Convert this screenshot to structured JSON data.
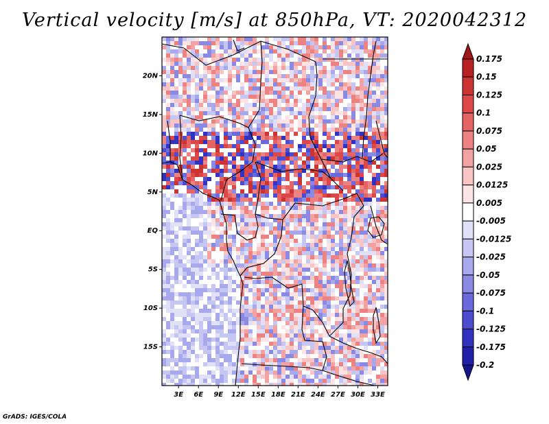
{
  "title": "Vertical velocity [m/s] at 850hPa, VT: 2020042312",
  "footer": "GrADS: IGES/COLA",
  "map": {
    "lat_ticks": [
      {
        "label": "20N",
        "value": 20
      },
      {
        "label": "15N",
        "value": 15
      },
      {
        "label": "10N",
        "value": 10
      },
      {
        "label": "5N",
        "value": 5
      },
      {
        "label": "EQ",
        "value": 0
      },
      {
        "label": "5S",
        "value": -5
      },
      {
        "label": "10S",
        "value": -10
      },
      {
        "label": "15S",
        "value": -15
      }
    ],
    "lon_ticks": [
      {
        "label": "3E",
        "value": 3
      },
      {
        "label": "6E",
        "value": 6
      },
      {
        "label": "9E",
        "value": 9
      },
      {
        "label": "12E",
        "value": 12
      },
      {
        "label": "15E",
        "value": 15
      },
      {
        "label": "18E",
        "value": 18
      },
      {
        "label": "21E",
        "value": 21
      },
      {
        "label": "24E",
        "value": 24
      },
      {
        "label": "27E",
        "value": 27
      },
      {
        "label": "30E",
        "value": 30
      },
      {
        "label": "33E",
        "value": 33
      }
    ],
    "lat_range": [
      -20,
      25
    ],
    "lon_range": [
      0.5,
      34.5
    ]
  },
  "colorbar": {
    "labels": [
      "0.175",
      "0.15",
      "0.125",
      "0.1",
      "0.075",
      "0.05",
      "0.025",
      "0.0125",
      "0.005",
      "-0.005",
      "-0.0125",
      "-0.025",
      "-0.05",
      "-0.075",
      "-0.1",
      "-0.125",
      "-0.175",
      "-0.2"
    ],
    "colors": [
      "#a01818",
      "#b82222",
      "#cc3333",
      "#dc4848",
      "#e46464",
      "#ec8282",
      "#f2a2a2",
      "#f8c4c4",
      "#fce4e4",
      "#ffffff",
      "#e0e0f8",
      "#c6c6f2",
      "#a8a8ec",
      "#8a8ae4",
      "#6a6adc",
      "#4c4cd0",
      "#3232c0",
      "#2020a8",
      "#15158c"
    ]
  }
}
